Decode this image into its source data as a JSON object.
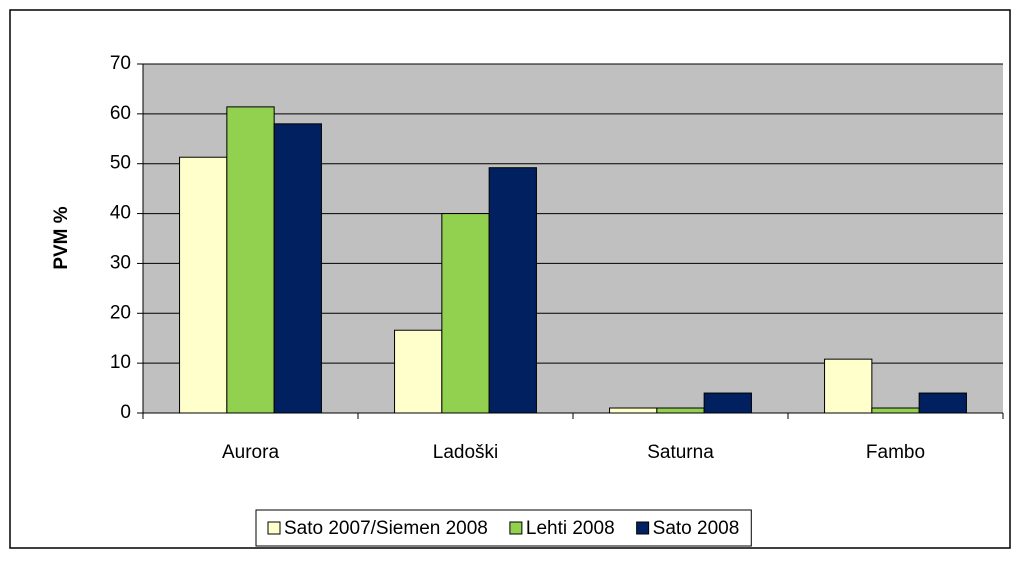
{
  "chart_data": {
    "type": "bar",
    "y_label": "PVM %",
    "categories": [
      "Aurora",
      "Ladoški",
      "Saturna",
      "Fambo"
    ],
    "series": [
      {
        "name": "Sato 2007/Siemen 2008",
        "color": "#ffffcc",
        "values": [
          51.3,
          16.6,
          1,
          10.8
        ]
      },
      {
        "name": "Lehti 2008",
        "color": "#92d050",
        "values": [
          61.4,
          40,
          1,
          1
        ]
      },
      {
        "name": "Sato 2008",
        "color": "#002060",
        "values": [
          58,
          49.2,
          4,
          4
        ]
      }
    ],
    "ylim": [
      0,
      70
    ],
    "yticks": [
      0,
      10,
      20,
      30,
      40,
      50,
      60,
      70
    ],
    "grid": true,
    "legend": "bottom"
  }
}
